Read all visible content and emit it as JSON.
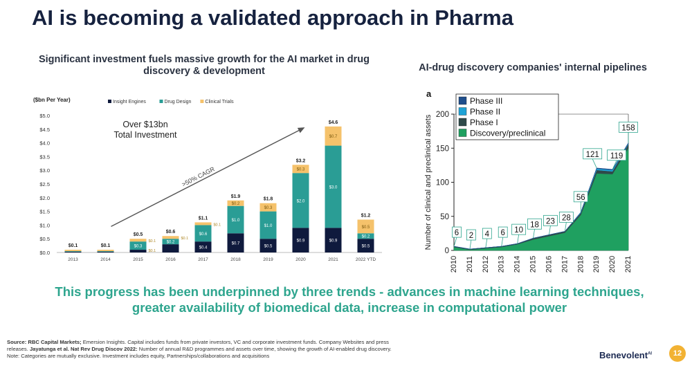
{
  "title": "AI is becoming a validated approach in Pharma",
  "left_heading": "Significant investment fuels massive growth for the AI market in drug discovery & development",
  "right_heading": "AI-drug discovery companies' internal pipelines",
  "bottom_text": "This progress has been underpinned by three trends - advances in machine learning techniques, greater availability of biomedical data, increase in computational power",
  "footnote": {
    "line1_bold": "Source: RBC Capital Markets;",
    "line1": " Emersion Insights.  Capital includes funds from private investors, VC and corporate investment funds. Company Websites and press",
    "line2_a": "releases. ",
    "line2_bold": "Jayatunga et al. Nat Rev Drug Discov 2022:",
    "line2_b": " Number of annual R&D programmes and assets over time, showing the growth of AI-enabled drug discovery.",
    "line3": "Note: Categories are mutually exclusive. Investment includes equity, Partnerships/collaborations and acquisitions"
  },
  "brand": "Benevolent",
  "brand_sup": "AI",
  "page_number": "12",
  "colors": {
    "navy": "#0f1a3d",
    "teal": "#2a9d95",
    "gold": "#f5c26b",
    "phase3": "#1f4e8c",
    "phase2": "#1fa3d6",
    "phase1": "#2f4a4a",
    "discovery": "#1fa060",
    "text_teal": "#2ea58e"
  },
  "chart_data": [
    {
      "type": "bar",
      "stacked": true,
      "ylabel": "($bn Per Year)",
      "ylim": [
        0,
        5.0
      ],
      "yticks": [
        "$0.0",
        "$0.5",
        "$1.0",
        "$1.5",
        "$2.0",
        "$2.5",
        "$3.0",
        "$3.5",
        "$4.0",
        "$4.5",
        "$5.0"
      ],
      "categories": [
        "2013",
        "2014",
        "2015",
        "2016",
        "2017",
        "2018",
        "2019",
        "2020",
        "2021",
        "2022 YTD"
      ],
      "series": [
        {
          "name": "Insight Engines",
          "color": "#0f1a3d",
          "values": [
            0.03,
            0.03,
            0.1,
            0.3,
            0.4,
            0.7,
            0.5,
            0.9,
            0.9,
            0.5
          ]
        },
        {
          "name": "Drug Design",
          "color": "#2a9d95",
          "values": [
            0.02,
            0.02,
            0.3,
            0.2,
            0.6,
            1.0,
            1.0,
            2.0,
            3.0,
            0.2
          ]
        },
        {
          "name": "Clinical Trials",
          "color": "#f5c26b",
          "values": [
            0.05,
            0.05,
            0.1,
            0.1,
            0.1,
            0.2,
            0.3,
            0.3,
            0.7,
            0.5
          ]
        }
      ],
      "segment_labels": [
        [
          "",
          "",
          "",
          "",
          "$0.4",
          "$0.7",
          "$0.5",
          "$0.9",
          "$0.9",
          "$0.5"
        ],
        [
          "",
          "",
          "$0.3",
          "$0.2",
          "$0.6",
          "$1.0",
          "$1.0",
          "$2.0",
          "$3.0",
          "$0.2"
        ],
        [
          "",
          "",
          "",
          "",
          "",
          "$0.2",
          "$0.3",
          "$0.3",
          "$0.7",
          "$0.5"
        ]
      ],
      "side_labels": [
        {
          "index": 2,
          "text": "$0.1",
          "pos": "top"
        },
        {
          "index": 2,
          "text": "$0.1",
          "pos": "bottom"
        },
        {
          "index": 3,
          "text": "$0.1",
          "pos": "top"
        },
        {
          "index": 4,
          "text": "$0.1",
          "pos": "top"
        }
      ],
      "totals": [
        "$0.1",
        "$0.1",
        "$0.5",
        "$0.6",
        "$1.1",
        "$1.9",
        "$1.8",
        "$3.2",
        "$4.6",
        "$1.2"
      ],
      "annotation": "Over $13bn Total Investment",
      "arrow_label": ">50% CAGR",
      "legend_position": "top"
    },
    {
      "type": "area",
      "stacked": true,
      "panel_label": "a",
      "ylabel": "Number of clinical and preclinical assets",
      "ylim": [
        0,
        200
      ],
      "yticks": [
        0,
        50,
        100,
        150,
        200
      ],
      "x": [
        "2010",
        "2011",
        "2012",
        "2013",
        "2014",
        "2015",
        "2016",
        "2017",
        "2018",
        "2019",
        "2020",
        "2021"
      ],
      "series": [
        {
          "name": "Discovery/preclinical",
          "color": "#1fa060",
          "values": [
            5,
            1,
            3,
            5,
            9,
            16,
            21,
            26,
            52,
            113,
            112,
            150
          ]
        },
        {
          "name": "Phase I",
          "color": "#2f4a4a",
          "values": [
            1,
            1,
            1,
            1,
            1,
            2,
            2,
            2,
            3,
            5,
            4,
            6
          ]
        },
        {
          "name": "Phase II",
          "color": "#1fa3d6",
          "values": [
            0,
            0,
            0,
            0,
            0,
            0,
            0,
            0,
            1,
            2,
            2,
            1
          ]
        },
        {
          "name": "Phase III",
          "color": "#1f4e8c",
          "values": [
            0,
            0,
            0,
            0,
            0,
            0,
            0,
            0,
            0,
            1,
            1,
            1
          ]
        }
      ],
      "totals": [
        6,
        2,
        4,
        6,
        10,
        18,
        23,
        28,
        56,
        121,
        119,
        158
      ],
      "legend_position": "top-left"
    }
  ]
}
